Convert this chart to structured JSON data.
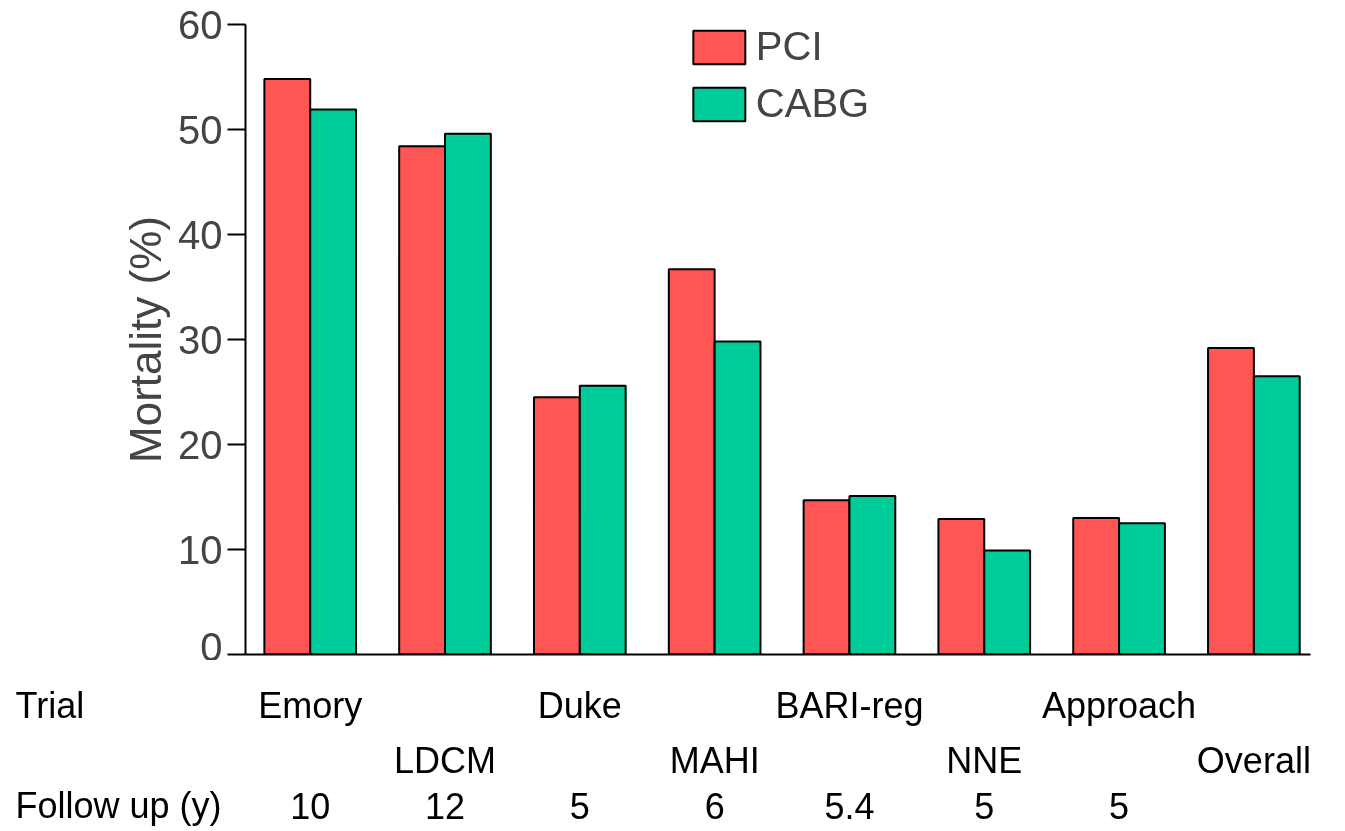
{
  "chart_data": {
    "type": "bar",
    "ylabel": "Mortality (%)",
    "categories": [
      "Emory",
      "LDCM",
      "Duke",
      "MAHI",
      "BARI-reg",
      "NNE",
      "Approach",
      "Overall"
    ],
    "series": [
      {
        "name": "PCI",
        "color": "#ff5555",
        "values": [
          54.8,
          48.4,
          24.5,
          36.7,
          14.7,
          12.9,
          13.0,
          29.2
        ]
      },
      {
        "name": "CABG",
        "color": "#00cc99",
        "values": [
          51.9,
          49.6,
          25.6,
          29.8,
          15.1,
          9.9,
          12.5,
          26.5
        ]
      }
    ],
    "ylim": [
      0,
      60
    ],
    "yticks": [
      0,
      10,
      20,
      30,
      40,
      50,
      60
    ],
    "grid": false,
    "legend": "top",
    "annotations": [
      "Trial",
      "Follow up (y)",
      "10",
      "12",
      "5",
      "6",
      "5.4",
      "5",
      "5"
    ]
  }
}
